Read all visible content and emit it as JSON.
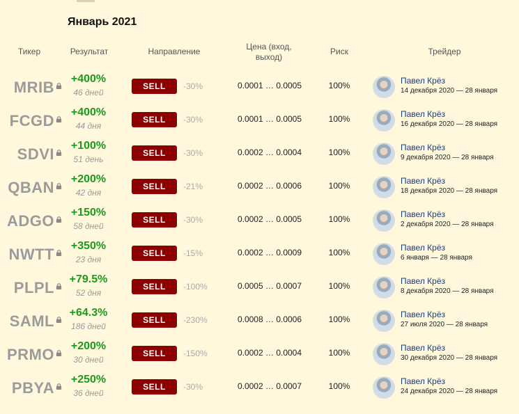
{
  "title": "Январь 2021",
  "headers": {
    "ticker": "Тикер",
    "result": "Результат",
    "direction": "Направление",
    "price": "Цена (вход, выход)",
    "risk": "Риск",
    "trader": "Трейдер"
  },
  "icons": {
    "lock": "lock-icon",
    "avatar": "trader-avatar"
  },
  "colors": {
    "background": "#fff8dc",
    "positive": "#1a9b1a",
    "sell": "#8b0000",
    "trader_link": "#1a3d7c"
  },
  "rows": [
    {
      "ticker": "MRIB",
      "result": "+400%",
      "days": "46 дней",
      "action": "SELL",
      "change": "-30%",
      "price": "0.0001 … 0.0005",
      "risk": "100%",
      "trader": "Павел Крёз",
      "dates": "14 декабря 2020 — 28 января"
    },
    {
      "ticker": "FCGD",
      "result": "+400%",
      "days": "44 дня",
      "action": "SELL",
      "change": "-30%",
      "price": "0.0001 … 0.0005",
      "risk": "100%",
      "trader": "Павел Крёз",
      "dates": "16 декабря 2020 — 28 января"
    },
    {
      "ticker": "SDVI",
      "result": "+100%",
      "days": "51 день",
      "action": "SELL",
      "change": "-30%",
      "price": "0.0002 … 0.0004",
      "risk": "100%",
      "trader": "Павел Крёз",
      "dates": "9 декабря 2020 — 28 января"
    },
    {
      "ticker": "QBAN",
      "result": "+200%",
      "days": "42 дня",
      "action": "SELL",
      "change": "-21%",
      "price": "0.0002 … 0.0006",
      "risk": "100%",
      "trader": "Павел Крёз",
      "dates": "18 декабря 2020 — 28 января"
    },
    {
      "ticker": "ADGO",
      "result": "+150%",
      "days": "58 дней",
      "action": "SELL",
      "change": "-30%",
      "price": "0.0002 … 0.0005",
      "risk": "100%",
      "trader": "Павел Крёз",
      "dates": "2 декабря 2020 — 28 января"
    },
    {
      "ticker": "NWTT",
      "result": "+350%",
      "days": "23 дня",
      "action": "SELL",
      "change": "-15%",
      "price": "0.0002 … 0.0009",
      "risk": "100%",
      "trader": "Павел Крёз",
      "dates": "6 января — 28 января"
    },
    {
      "ticker": "PLPL",
      "result": "+79.5%",
      "days": "52 дня",
      "action": "SELL",
      "change": "-100%",
      "price": "0.0005 … 0.0007",
      "risk": "100%",
      "trader": "Павел Крёз",
      "dates": "8 декабря 2020 — 28 января"
    },
    {
      "ticker": "SAML",
      "result": "+64.3%",
      "days": "186 дней",
      "action": "SELL",
      "change": "-230%",
      "price": "0.0008 … 0.0006",
      "risk": "100%",
      "trader": "Павел Крёз",
      "dates": "27 июля 2020 — 28 января"
    },
    {
      "ticker": "PRMO",
      "result": "+200%",
      "days": "30 дней",
      "action": "SELL",
      "change": "-150%",
      "price": "0.0002 … 0.0004",
      "risk": "100%",
      "trader": "Павел Крёз",
      "dates": "30 декабря 2020 — 28 января"
    },
    {
      "ticker": "PBYA",
      "result": "+250%",
      "days": "36 дней",
      "action": "SELL",
      "change": "-30%",
      "price": "0.0002 … 0.0007",
      "risk": "100%",
      "trader": "Павел Крёз",
      "dates": "24 декабря 2020 — 28 января"
    }
  ]
}
